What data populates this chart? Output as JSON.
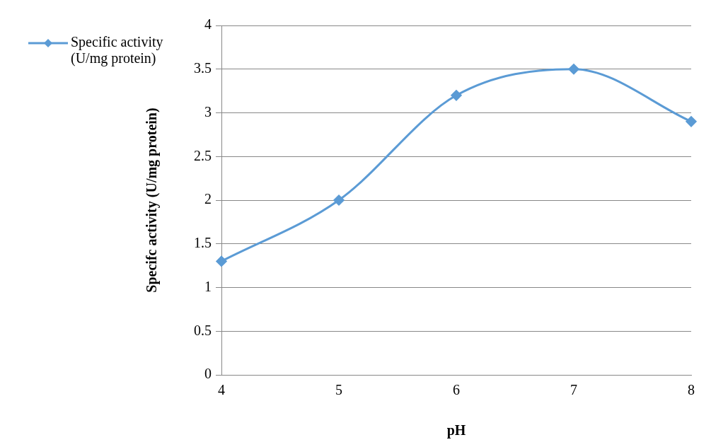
{
  "chart_data": {
    "type": "line",
    "xlabel": "pH",
    "ylabel": "Specifc activity (U/mg protein)",
    "x": [
      4,
      5,
      6,
      7,
      8
    ],
    "series": [
      {
        "name": "Specific activity (U/mg protein)",
        "color": "#5b9bd5",
        "values": [
          1.3,
          2.0,
          3.2,
          3.5,
          2.9
        ]
      }
    ],
    "xlim": [
      4,
      8
    ],
    "xticks": [
      4,
      5,
      6,
      7,
      8
    ],
    "ylim": [
      0,
      4
    ],
    "yticks": [
      0,
      0.5,
      1,
      1.5,
      2,
      2.5,
      3,
      3.5,
      4
    ],
    "grid": "y",
    "legend": "left",
    "marker": "diamond",
    "line_style": "solid"
  }
}
